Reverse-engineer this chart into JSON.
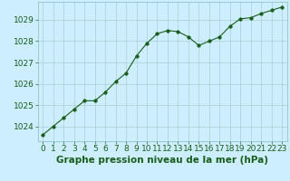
{
  "x": [
    0,
    1,
    2,
    3,
    4,
    5,
    6,
    7,
    8,
    9,
    10,
    11,
    12,
    13,
    14,
    15,
    16,
    17,
    18,
    19,
    20,
    21,
    22,
    23
  ],
  "y": [
    1023.6,
    1024.0,
    1024.4,
    1024.8,
    1025.2,
    1025.2,
    1025.6,
    1026.1,
    1026.5,
    1027.3,
    1027.9,
    1028.35,
    1028.5,
    1028.45,
    1028.2,
    1027.8,
    1028.0,
    1028.2,
    1028.7,
    1029.05,
    1029.1,
    1029.3,
    1029.45,
    1029.6
  ],
  "line_color": "#1a5c1a",
  "marker": "o",
  "marker_size": 2.5,
  "bg_color": "#cceeff",
  "grid_color": "#aacfcf",
  "xlabel": "Graphe pression niveau de la mer (hPa)",
  "xlabel_color": "#1a5c1a",
  "xlabel_fontsize": 7.5,
  "yticks": [
    1024,
    1025,
    1026,
    1027,
    1028,
    1029
  ],
  "xticks": [
    0,
    1,
    2,
    3,
    4,
    5,
    6,
    7,
    8,
    9,
    10,
    11,
    12,
    13,
    14,
    15,
    16,
    17,
    18,
    19,
    20,
    21,
    22,
    23
  ],
  "ylim": [
    1023.3,
    1029.85
  ],
  "xlim": [
    -0.5,
    23.5
  ],
  "tick_fontsize": 6.5,
  "tick_color": "#1a5c1a",
  "line_width": 0.8
}
